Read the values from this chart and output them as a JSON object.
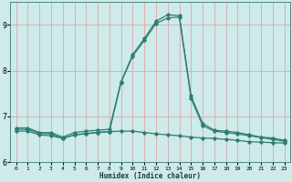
{
  "title": "",
  "xlabel": "Humidex (Indice chaleur)",
  "bg_color": "#ceeaea",
  "line_color": "#2d7d72",
  "grid_color": "#dba8a8",
  "xlim": [
    -0.5,
    23.5
  ],
  "ylim": [
    6.0,
    9.5
  ],
  "xticks": [
    0,
    1,
    2,
    3,
    4,
    5,
    6,
    7,
    8,
    9,
    10,
    11,
    12,
    13,
    14,
    15,
    16,
    17,
    18,
    19,
    20,
    21,
    22,
    23
  ],
  "yticks": [
    6,
    7,
    8,
    9
  ],
  "line1_x": [
    0,
    1,
    2,
    3,
    4,
    5,
    6,
    7,
    8,
    9,
    10,
    11,
    12,
    13,
    14,
    15,
    16,
    17,
    18,
    19,
    20,
    21,
    22,
    23
  ],
  "line1_y": [
    6.75,
    6.75,
    6.65,
    6.65,
    6.55,
    6.65,
    6.68,
    6.7,
    6.72,
    7.76,
    8.35,
    8.7,
    9.08,
    9.22,
    9.2,
    7.45,
    6.85,
    6.7,
    6.68,
    6.65,
    6.6,
    6.55,
    6.53,
    6.48
  ],
  "line2_x": [
    0,
    1,
    2,
    3,
    4,
    5,
    6,
    7,
    8,
    9,
    10,
    11,
    12,
    13,
    14,
    15,
    16,
    17,
    18,
    19,
    20,
    21,
    22,
    23
  ],
  "line2_y": [
    6.68,
    6.68,
    6.6,
    6.58,
    6.52,
    6.6,
    6.62,
    6.65,
    6.67,
    6.68,
    6.68,
    6.65,
    6.62,
    6.6,
    6.58,
    6.55,
    6.53,
    6.52,
    6.5,
    6.48,
    6.45,
    6.44,
    6.43,
    6.42
  ],
  "line3_x": [
    0,
    1,
    2,
    3,
    4,
    5,
    6,
    7,
    8,
    9,
    10,
    11,
    12,
    13,
    14,
    15,
    16,
    17,
    18,
    19,
    20,
    21,
    22,
    23
  ],
  "line3_y": [
    6.72,
    6.72,
    6.63,
    6.62,
    6.52,
    6.6,
    6.63,
    6.65,
    6.67,
    7.74,
    8.32,
    8.66,
    9.03,
    9.15,
    9.17,
    7.4,
    6.8,
    6.68,
    6.65,
    6.62,
    6.58,
    6.54,
    6.5,
    6.46
  ]
}
